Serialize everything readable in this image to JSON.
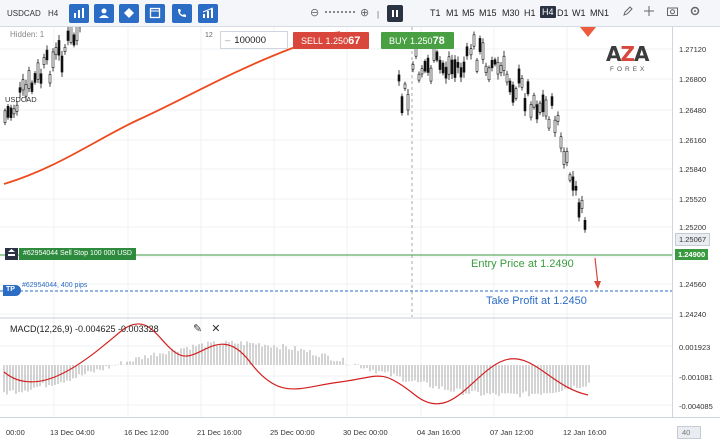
{
  "toolbar": {
    "symbol": "USDCAD",
    "timeframe": "H4",
    "zoom_out": "⊖",
    "zoom_in": "⊕",
    "pause": "❚❚",
    "timeframes": [
      "T1",
      "M1",
      "M5",
      "M15",
      "M30",
      "H1",
      "H4",
      "D1",
      "W1",
      "MN1"
    ],
    "active_timeframe": "H4"
  },
  "chart": {
    "hidden_label": "Hidden: 1",
    "pair_label": "USDCAD",
    "quantity_small": "12",
    "quantity": "100000",
    "sell": {
      "label": "SELL",
      "price_main": "1.250",
      "price_big": "67"
    },
    "buy": {
      "label": "BUY",
      "price_main": "1.250",
      "price_big": "78"
    },
    "logo": {
      "pre": "A",
      "accent": "Z",
      "post": "A",
      "sub": "FOREX"
    },
    "order_label": "#62954044 Sell Stop 100 000 USD",
    "tp_icon": "TP",
    "tp_label": "#62954044, 400 pips",
    "entry_note": "Entry Price at 1.2490",
    "tp_note": "Take Profit at 1.2450",
    "price_levels": [
      "1.27120",
      "1.26800",
      "1.26480",
      "1.26160",
      "1.25840",
      "1.25520",
      "1.25200",
      "1.24880",
      "1.24560",
      "1.24240"
    ],
    "current_price": "1.25067",
    "order_price": "1.24900",
    "x_labels": [
      "00:00",
      "13 Dec 04:00",
      "16 Dec 12:00",
      "21 Dec 16:00",
      "25 Dec 00:00",
      "30 Dec 00:00",
      "04 Jan 16:00",
      "07 Jan 12:00",
      "12 Jan 16:00"
    ]
  },
  "macd": {
    "label": "MACD(12,26,9) -0.004625 -0.003328",
    "edit_icon": "✎",
    "close_icon": "✕",
    "levels": [
      "0.001923",
      "-0.001081",
      "-0.004085"
    ],
    "bottom_right": "40"
  },
  "colors": {
    "toolbar_button": "#2b6cc4",
    "sell": "#d9473c",
    "buy": "#48a043",
    "ma_line": "#ee4a1c",
    "order_line": "#3a9a3f",
    "tp_line": "#2b6cc4",
    "macd_signal": "#d42020"
  },
  "icons": [
    "bar-chart-icon",
    "person-icon",
    "diamond-icon",
    "template-icon",
    "phone-icon",
    "scale-icon",
    "pencil-icon",
    "crosshair-icon",
    "screenshot-icon",
    "settings-icon"
  ]
}
